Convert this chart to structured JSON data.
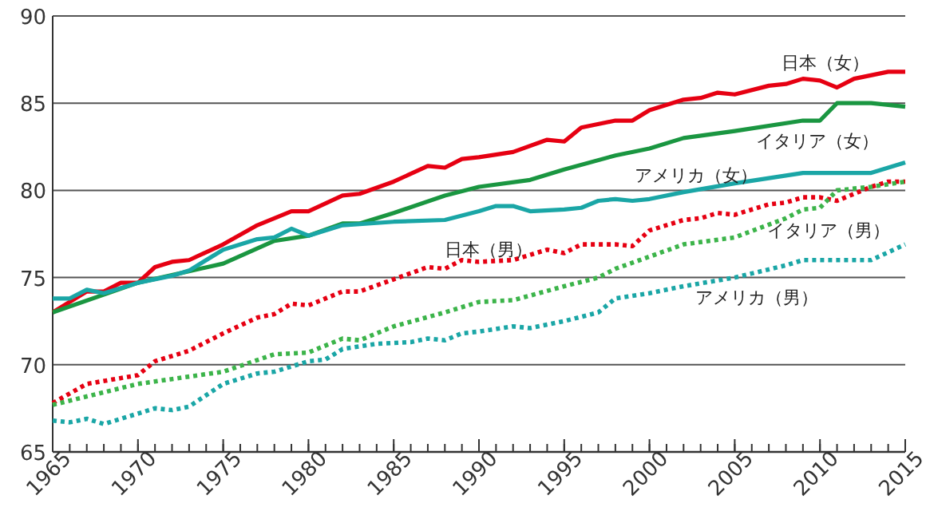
{
  "chart_data": {
    "type": "line",
    "xlim": [
      1965,
      2015
    ],
    "xticks": [
      1965,
      1970,
      1975,
      1980,
      1985,
      1990,
      1995,
      2000,
      2005,
      2010,
      2015
    ],
    "ylim": [
      65,
      90
    ],
    "yticks": [
      65,
      70,
      75,
      80,
      85,
      90
    ],
    "grid": "y",
    "legend": false,
    "marker": "none",
    "series": [
      {
        "name": "日本（女）",
        "color": "#e60012",
        "line_style": "solid",
        "x": [
          1965,
          1967,
          1968,
          1969,
          1970,
          1971,
          1972,
          1973,
          1975,
          1977,
          1979,
          1980,
          1982,
          1983,
          1985,
          1987,
          1988,
          1989,
          1990,
          1992,
          1994,
          1995,
          1996,
          1998,
          1999,
          2000,
          2002,
          2003,
          2004,
          2005,
          2007,
          2008,
          2009,
          2010,
          2011,
          2012,
          2014,
          2015
        ],
        "values": [
          73.0,
          74.2,
          74.2,
          74.7,
          74.7,
          75.6,
          75.9,
          76.0,
          76.9,
          78.0,
          78.8,
          78.8,
          79.7,
          79.8,
          80.5,
          81.4,
          81.3,
          81.8,
          81.9,
          82.2,
          82.9,
          82.8,
          83.6,
          84.0,
          84.0,
          84.6,
          85.2,
          85.3,
          85.6,
          85.5,
          86.0,
          86.1,
          86.4,
          86.3,
          85.9,
          86.4,
          86.8,
          86.8
        ]
      },
      {
        "name": "イタリア（女）",
        "color": "#1a9641",
        "line_style": "solid",
        "x": [
          1965,
          1970,
          1975,
          1978,
          1980,
          1982,
          1983,
          1985,
          1988,
          1990,
          1993,
          1995,
          1998,
          2000,
          2002,
          2005,
          2009,
          2010,
          2011,
          2013,
          2015
        ],
        "values": [
          73.0,
          74.7,
          75.8,
          77.1,
          77.4,
          78.1,
          78.1,
          78.7,
          79.7,
          80.2,
          80.6,
          81.2,
          82.0,
          82.4,
          83.0,
          83.4,
          84.0,
          84.0,
          85.0,
          85.0,
          84.8
        ]
      },
      {
        "name": "アメリカ（女）",
        "color": "#1aa6a6",
        "line_style": "solid",
        "x": [
          1965,
          1966,
          1967,
          1968,
          1970,
          1972,
          1973,
          1975,
          1977,
          1978,
          1979,
          1980,
          1982,
          1985,
          1988,
          1990,
          1991,
          1992,
          1993,
          1995,
          1996,
          1997,
          1998,
          1999,
          2000,
          2002,
          2005,
          2009,
          2010,
          2013,
          2015
        ],
        "values": [
          73.8,
          73.8,
          74.3,
          74.1,
          74.7,
          75.1,
          75.4,
          76.6,
          77.2,
          77.3,
          77.8,
          77.4,
          78.0,
          78.2,
          78.3,
          78.8,
          79.1,
          79.1,
          78.8,
          78.9,
          79.0,
          79.4,
          79.5,
          79.4,
          79.5,
          79.9,
          80.4,
          81.0,
          81.0,
          81.0,
          81.6
        ]
      },
      {
        "name": "日本（男）",
        "color": "#e60012",
        "line_style": "dotted",
        "x": [
          1965,
          1967,
          1970,
          1971,
          1973,
          1975,
          1977,
          1978,
          1979,
          1980,
          1982,
          1983,
          1985,
          1987,
          1988,
          1989,
          1990,
          1992,
          1993,
          1994,
          1995,
          1996,
          1998,
          1999,
          2000,
          2002,
          2003,
          2004,
          2005,
          2007,
          2008,
          2009,
          2010,
          2011,
          2013,
          2014,
          2015
        ],
        "values": [
          67.8,
          68.9,
          69.4,
          70.2,
          70.8,
          71.8,
          72.7,
          72.9,
          73.5,
          73.4,
          74.2,
          74.2,
          74.9,
          75.6,
          75.5,
          76.0,
          75.9,
          76.0,
          76.3,
          76.6,
          76.4,
          76.9,
          76.9,
          76.8,
          77.7,
          78.3,
          78.4,
          78.7,
          78.6,
          79.2,
          79.3,
          79.6,
          79.6,
          79.4,
          80.2,
          80.5,
          80.5
        ]
      },
      {
        "name": "イタリア（男）",
        "color": "#3cb44a",
        "line_style": "dotted",
        "x": [
          1965,
          1970,
          1975,
          1978,
          1980,
          1982,
          1983,
          1985,
          1988,
          1990,
          1992,
          1995,
          1997,
          1998,
          2000,
          2002,
          2005,
          2008,
          2009,
          2010,
          2011,
          2013,
          2015
        ],
        "values": [
          67.7,
          68.9,
          69.6,
          70.6,
          70.7,
          71.5,
          71.4,
          72.2,
          73.0,
          73.6,
          73.7,
          74.5,
          75.0,
          75.5,
          76.2,
          76.9,
          77.3,
          78.4,
          78.9,
          79.0,
          80.0,
          80.2,
          80.5
        ]
      },
      {
        "name": "アメリカ（男）",
        "color": "#1aa6a6",
        "line_style": "dotted",
        "x": [
          1965,
          1966,
          1967,
          1968,
          1970,
          1971,
          1972,
          1973,
          1975,
          1977,
          1978,
          1980,
          1981,
          1982,
          1984,
          1986,
          1987,
          1988,
          1989,
          1990,
          1992,
          1993,
          1995,
          1997,
          1998,
          2000,
          2002,
          2005,
          2008,
          2009,
          2013,
          2015
        ],
        "values": [
          66.8,
          66.7,
          66.9,
          66.6,
          67.2,
          67.5,
          67.4,
          67.6,
          68.9,
          69.5,
          69.6,
          70.2,
          70.3,
          70.9,
          71.2,
          71.3,
          71.5,
          71.4,
          71.8,
          71.9,
          72.2,
          72.1,
          72.5,
          73.0,
          73.8,
          74.1,
          74.5,
          75.0,
          75.7,
          76.0,
          76.0,
          76.9
        ]
      }
    ]
  }
}
